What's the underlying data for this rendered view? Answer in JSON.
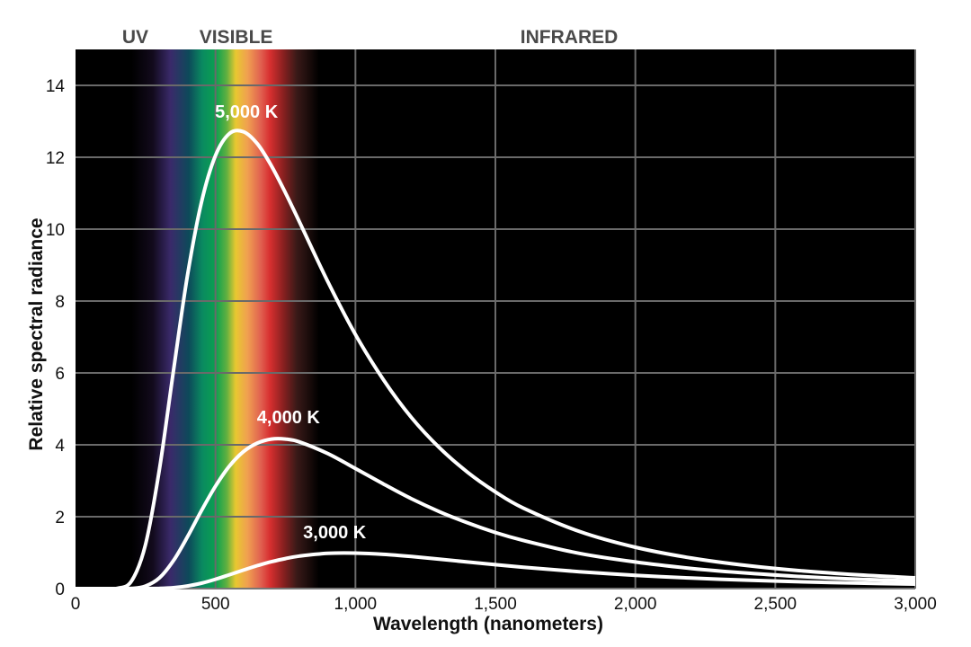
{
  "chart_data": {
    "type": "line",
    "title": "",
    "xlabel": "Wavelength (nanometers)",
    "ylabel": "Relative spectral radiance",
    "xlim": [
      0,
      3000
    ],
    "ylim": [
      0,
      15
    ],
    "grid": true,
    "x_ticks": [
      0,
      500,
      1000,
      1500,
      2000,
      2500,
      3000
    ],
    "x_tick_labels": [
      "0",
      "500",
      "1,000",
      "1,500",
      "2,000",
      "2,500",
      "3,000"
    ],
    "y_ticks": [
      0,
      2,
      4,
      6,
      8,
      10,
      12,
      14
    ],
    "y_tick_labels": [
      "0",
      "2",
      "4",
      "6",
      "8",
      "10",
      "12",
      "14"
    ],
    "region_labels": [
      {
        "text": "UV",
        "center_nm": 220
      },
      {
        "text": "VISIBLE",
        "center_nm": 580
      },
      {
        "text": "INFRARED",
        "center_nm": 1770
      }
    ],
    "background_color": "#000000",
    "line_color": "#ffffff",
    "spectrum_band": [
      {
        "nm": 200,
        "color": "#000000"
      },
      {
        "nm": 276,
        "color": "#120a1c"
      },
      {
        "nm": 340,
        "color": "#3a2a6a"
      },
      {
        "nm": 405,
        "color": "#0d4a5a"
      },
      {
        "nm": 453,
        "color": "#0a8a60"
      },
      {
        "nm": 501,
        "color": "#0aa050"
      },
      {
        "nm": 540,
        "color": "#60b040"
      },
      {
        "nm": 572,
        "color": "#e8c830"
      },
      {
        "nm": 614,
        "color": "#f0a050"
      },
      {
        "nm": 662,
        "color": "#e06050"
      },
      {
        "nm": 694,
        "color": "#d83030"
      },
      {
        "nm": 742,
        "color": "#8a2020"
      },
      {
        "nm": 790,
        "color": "#3a1a18"
      },
      {
        "nm": 870,
        "color": "#000000"
      }
    ],
    "x": [
      0,
      100,
      150,
      200,
      250,
      300,
      350,
      400,
      450,
      500,
      550,
      600,
      650,
      700,
      750,
      800,
      900,
      1000,
      1100,
      1200,
      1300,
      1400,
      1500,
      1600,
      1800,
      2000,
      2200,
      2400,
      2600,
      2800,
      3000
    ],
    "series": [
      {
        "name": "5,000 K",
        "label_nm": 630,
        "label_value": 13.1,
        "values": [
          0,
          0,
          0.007,
          0.21,
          1.22,
          3.33,
          6.07,
          8.71,
          10.75,
          12.05,
          12.66,
          12.71,
          12.37,
          11.76,
          11.01,
          10.2,
          8.56,
          7.07,
          5.81,
          4.76,
          3.92,
          3.24,
          2.69,
          2.24,
          1.59,
          1.15,
          0.85,
          0.64,
          0.49,
          0.38,
          0.3
        ]
      },
      {
        "name": "4,000 K",
        "label_nm": 780,
        "label_value": 4.6,
        "values": [
          0,
          0,
          0,
          0.006,
          0.07,
          0.3,
          0.78,
          1.44,
          2.17,
          2.85,
          3.41,
          3.81,
          4.05,
          4.16,
          4.16,
          4.08,
          3.76,
          3.34,
          2.91,
          2.5,
          2.14,
          1.83,
          1.56,
          1.34,
          0.98,
          0.74,
          0.56,
          0.43,
          0.33,
          0.26,
          0.21
        ]
      },
      {
        "name": "3,000 K",
        "label_nm": 945,
        "label_value": 1.4,
        "values": [
          0,
          0,
          0,
          0,
          0.001,
          0.006,
          0.025,
          0.072,
          0.151,
          0.259,
          0.385,
          0.515,
          0.639,
          0.747,
          0.836,
          0.904,
          0.979,
          0.988,
          0.953,
          0.892,
          0.819,
          0.741,
          0.666,
          0.594,
          0.47,
          0.37,
          0.293,
          0.234,
          0.187,
          0.152,
          0.124
        ]
      }
    ]
  }
}
